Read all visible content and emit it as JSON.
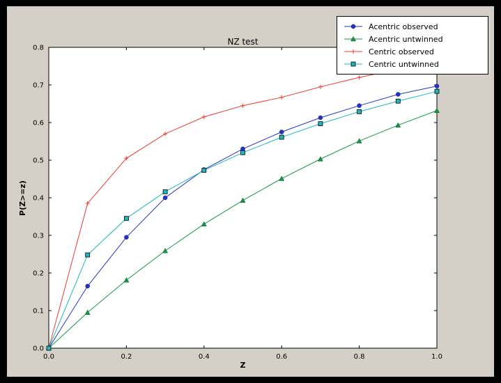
{
  "figure": {
    "background": "#d4d0c8",
    "plot_background": "#ffffff",
    "frame_color": "#000000",
    "axis_color": "#000000"
  },
  "chart_data": {
    "type": "line",
    "title": "NZ test",
    "xlabel": "Z",
    "ylabel": "P(Z>=z)",
    "xlim": [
      0.0,
      1.0
    ],
    "ylim": [
      0.0,
      0.8
    ],
    "xticks": [
      0.0,
      0.2,
      0.4,
      0.6,
      0.8,
      1.0
    ],
    "yticks": [
      0.0,
      0.1,
      0.2,
      0.3,
      0.4,
      0.5,
      0.6,
      0.7,
      0.8
    ],
    "grid": false,
    "legend_position": "top-right",
    "x": [
      0.0,
      0.1,
      0.2,
      0.3,
      0.4,
      0.5,
      0.6,
      0.7,
      0.8,
      0.9,
      1.0
    ],
    "series": [
      {
        "name": "Acentric observed",
        "color": "#2233cc",
        "marker": "circle",
        "values": [
          0.0,
          0.165,
          0.295,
          0.4,
          0.475,
          0.53,
          0.575,
          0.613,
          0.645,
          0.675,
          0.697
        ]
      },
      {
        "name": "Acentric untwinned",
        "color": "#119944",
        "marker": "triangle",
        "values": [
          0.0,
          0.095,
          0.181,
          0.259,
          0.33,
          0.393,
          0.451,
          0.503,
          0.551,
          0.593,
          0.632
        ]
      },
      {
        "name": "Centric observed",
        "color": "#ee3b2e",
        "marker": "plus",
        "values": [
          0.0,
          0.385,
          0.505,
          0.57,
          0.615,
          0.645,
          0.667,
          0.695,
          0.72,
          0.742,
          0.762
        ]
      },
      {
        "name": "Centric untwinned",
        "color": "#1cb8be",
        "marker": "square",
        "values": [
          0.0,
          0.248,
          0.345,
          0.416,
          0.473,
          0.52,
          0.561,
          0.597,
          0.629,
          0.657,
          0.683
        ]
      }
    ]
  }
}
